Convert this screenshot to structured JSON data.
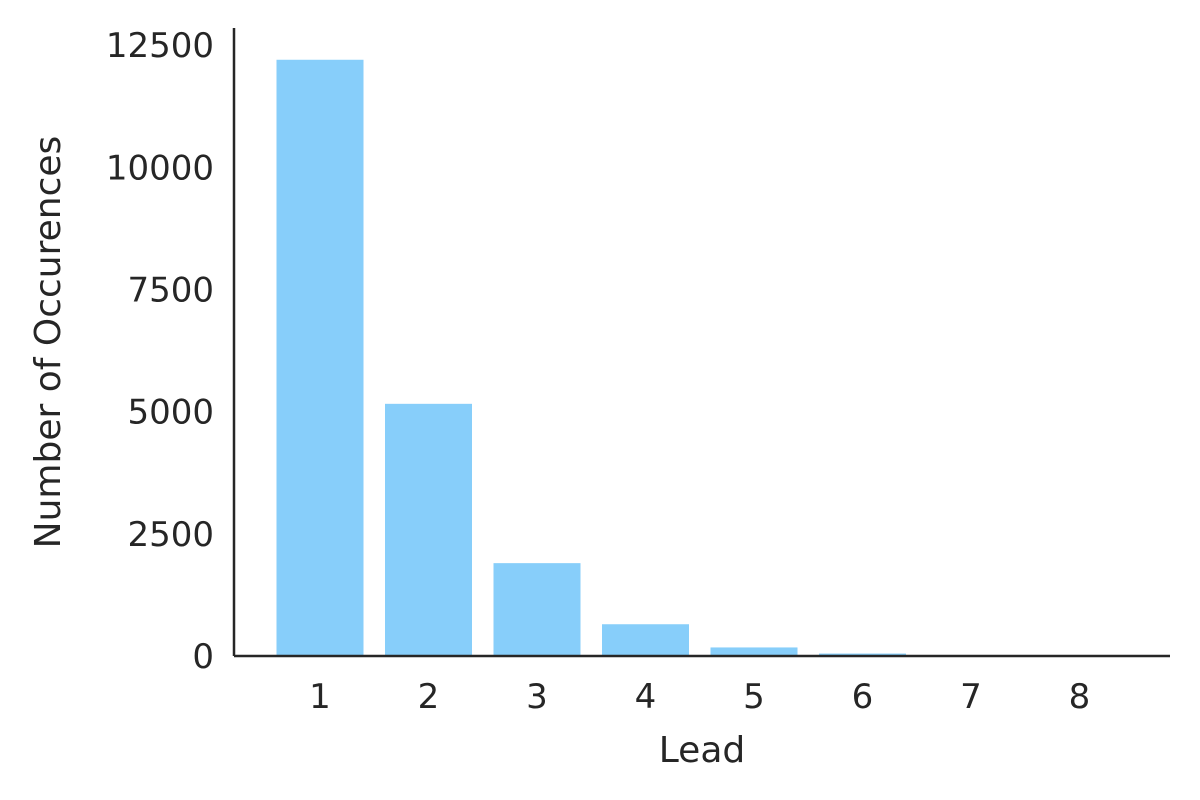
{
  "chart_data": {
    "type": "bar",
    "xlabel": "Lead",
    "ylabel": "Number of Occurences",
    "categories": [
      "1",
      "2",
      "3",
      "4",
      "5",
      "6",
      "7",
      "8"
    ],
    "values": [
      12200,
      5160,
      1900,
      650,
      175,
      50,
      10,
      3
    ],
    "ylim": [
      0,
      12850
    ],
    "yticks": [
      0,
      2500,
      5000,
      7500,
      10000,
      12500
    ],
    "ytick_labels": [
      "0",
      "2500",
      "5000",
      "7500",
      "10000",
      "12500"
    ],
    "grid": false,
    "bar_color": "#87CEFA",
    "axis_color": "#262626"
  }
}
